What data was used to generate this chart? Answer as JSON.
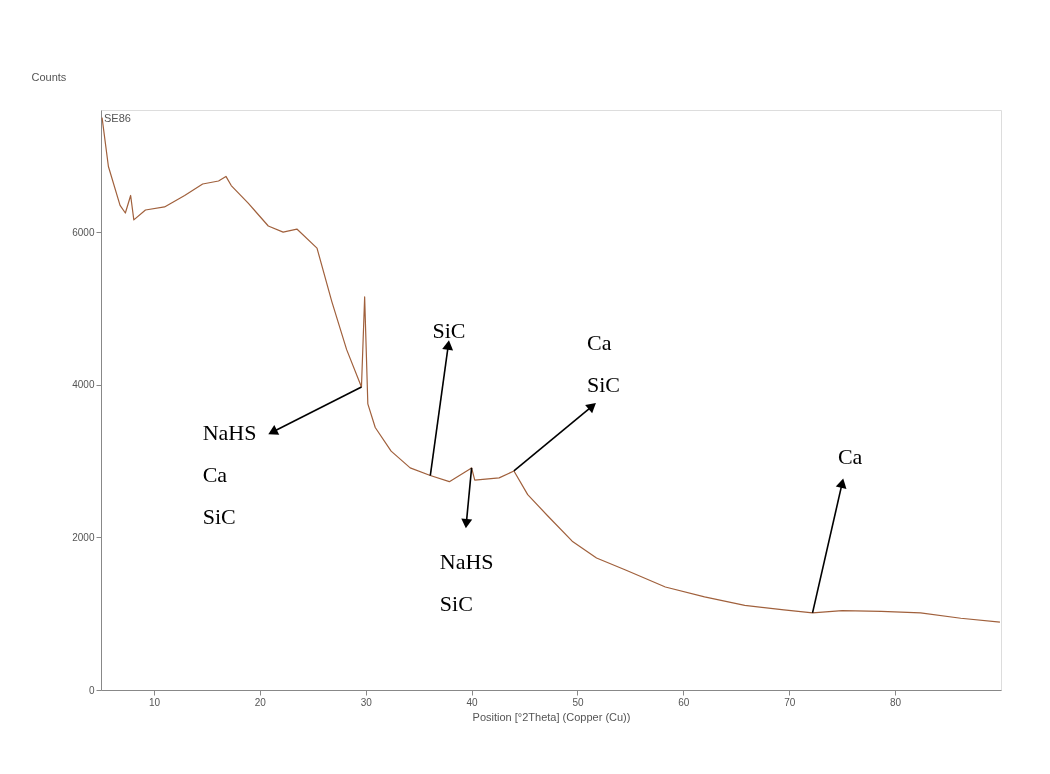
{
  "chart_data": [
    {
      "type": "line",
      "xlabel": "Position [°2Theta] (Copper (Cu))",
      "ylabel": "Counts",
      "xlim": [
        5,
        90
      ],
      "ylim": [
        0,
        7600
      ],
      "xticks": [
        10,
        20,
        30,
        40,
        50,
        60,
        70,
        80
      ],
      "yticks": [
        0,
        2000,
        4000,
        6000
      ],
      "grid": false,
      "legend": false,
      "marker": "none",
      "line_style": "solid",
      "annotations": [
        "SE86",
        {
          "text": "NaHS\nCa\nSiC",
          "x": 29.6,
          "y": 3970
        },
        {
          "text": "SiC",
          "x": 36.1,
          "y": 2810
        },
        {
          "text": "NaHS\nSiC",
          "x": 40.0,
          "y": 2910
        },
        {
          "text": "Ca\nSiC",
          "x": 44.0,
          "y": 2870
        },
        {
          "text": "Ca",
          "x": 72.2,
          "y": 1010
        }
      ],
      "series": [
        {
          "color": "#a0603c",
          "x": [
            5.1,
            5.7,
            6.8,
            7.3,
            7.8,
            8.1,
            9.2,
            11.0,
            12.9,
            14.6,
            16.1,
            16.8,
            17.3,
            18.9,
            20.8,
            22.2,
            23.5,
            25.4,
            26.8,
            28.2,
            29.6,
            29.9,
            30.2,
            30.9,
            32.4,
            34.2,
            36.1,
            37.9,
            40.0,
            40.3,
            42.6,
            44.0,
            45.3,
            47.2,
            49.5,
            51.8,
            54.6,
            58.3,
            62.0,
            65.8,
            69.5,
            72.2,
            75.0,
            78.7,
            82.4,
            86.2,
            89.9
          ],
          "values": [
            7500,
            6860,
            6350,
            6250,
            6480,
            6160,
            6290,
            6330,
            6480,
            6630,
            6670,
            6730,
            6610,
            6380,
            6080,
            6000,
            6040,
            5790,
            5090,
            4460,
            3970,
            5150,
            3750,
            3440,
            3130,
            2910,
            2810,
            2730,
            2910,
            2750,
            2780,
            2870,
            2560,
            2280,
            1950,
            1730,
            1570,
            1350,
            1220,
            1110,
            1050,
            1010,
            1040,
            1030,
            1010,
            940,
            890
          ]
        }
      ]
    }
  ]
}
